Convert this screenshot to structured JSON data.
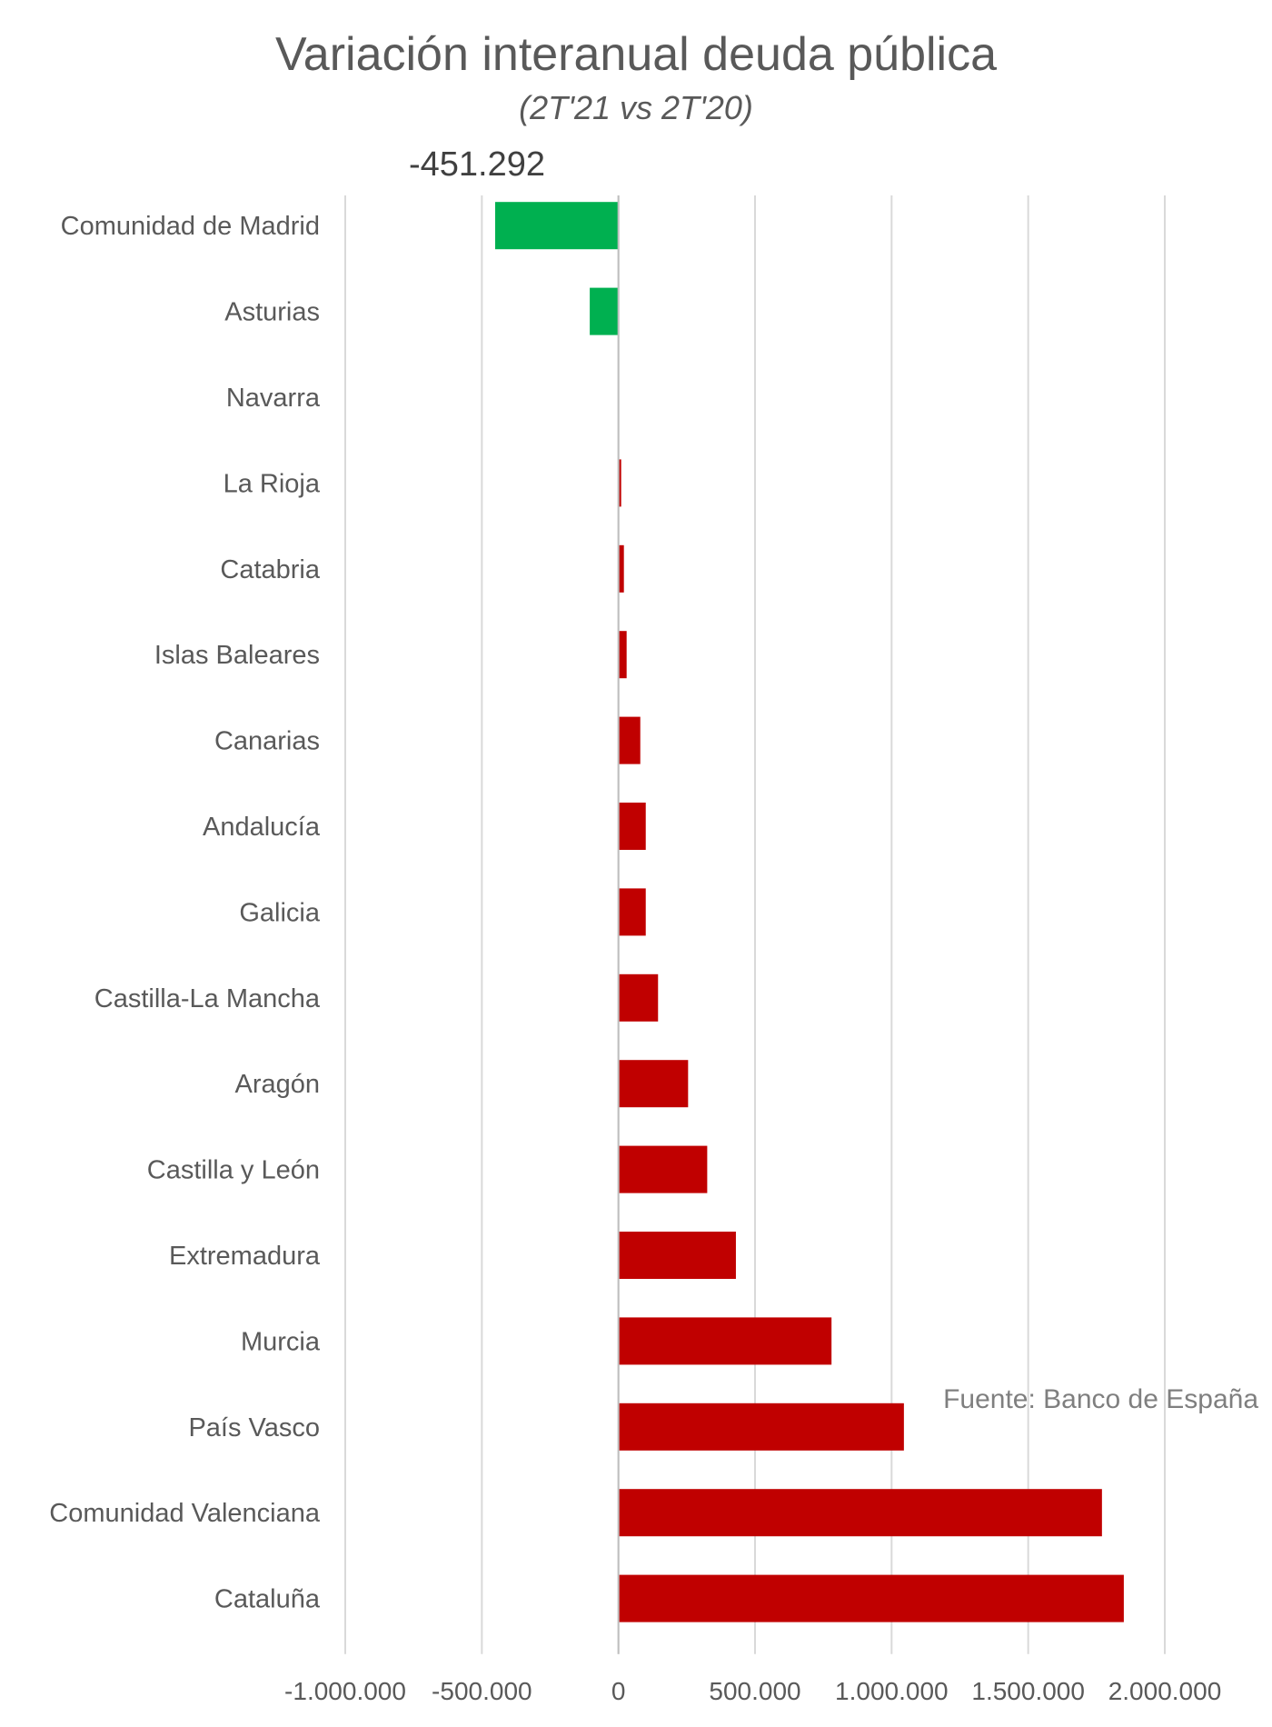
{
  "chart_data": {
    "type": "bar",
    "orientation": "horizontal",
    "title": "Variación interanual deuda pública",
    "subtitle": "(2T'21 vs 2T'20)",
    "source_note": "Fuente: Banco de España",
    "categories": [
      "Comunidad de Madrid",
      "Asturias",
      "Navarra",
      "La Rioja",
      "Catabria",
      "Islas Baleares",
      "Canarias",
      "Andalucía",
      "Galicia",
      "Castilla-La Mancha",
      "Aragón",
      "Castilla y León",
      "Extremadura",
      "Murcia",
      "País Vasco",
      "Comunidad Valenciana",
      "Cataluña"
    ],
    "values": [
      -451292,
      -105000,
      0,
      10000,
      20000,
      30000,
      80000,
      100000,
      100000,
      145000,
      255000,
      325000,
      430000,
      780000,
      1045000,
      1770000,
      1850000
    ],
    "data_labels": [
      {
        "category": "Comunidad de Madrid",
        "text": "-451.292"
      }
    ],
    "colors": {
      "negative": "#00B050",
      "positive": "#C00000",
      "gridline": "#D9D9D9",
      "text": "#595959"
    },
    "xlim": [
      -1000000,
      2000000
    ],
    "x_ticks": [
      -1000000,
      -500000,
      0,
      500000,
      1000000,
      1500000,
      2000000
    ],
    "x_tick_labels": [
      "-1.000.000",
      "-500.000",
      "0",
      "500.000",
      "1.000.000",
      "1.500.000",
      "2.000.000"
    ],
    "grid": "vertical",
    "legend": "none"
  }
}
